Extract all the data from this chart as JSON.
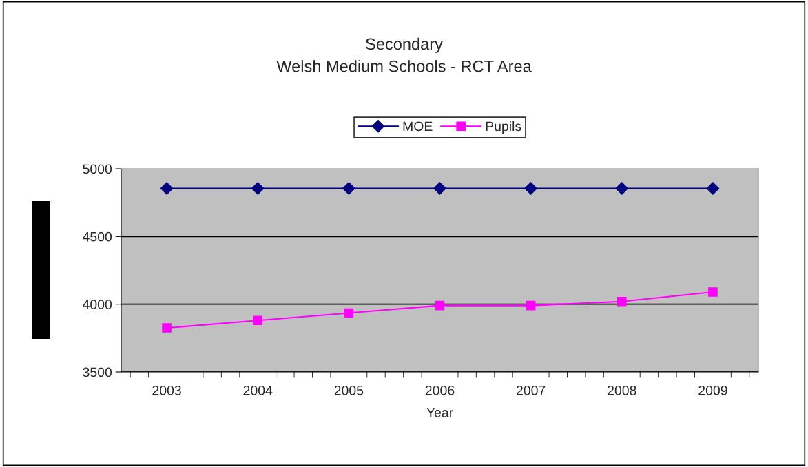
{
  "chart_data": {
    "type": "line",
    "title": "Secondary\nWelsh Medium Schools - RCT Area",
    "xlabel": "Year",
    "categories": [
      "2003",
      "2004",
      "2005",
      "2006",
      "2007",
      "2008",
      "2009"
    ],
    "series": [
      {
        "name": "MOE",
        "color": "#000080",
        "marker": "diamond",
        "values": [
          4855,
          4855,
          4855,
          4855,
          4855,
          4855,
          4855
        ]
      },
      {
        "name": "Pupils",
        "color": "#ff00ff",
        "marker": "square",
        "values": [
          3825,
          3880,
          3935,
          3990,
          3990,
          4020,
          4090
        ]
      }
    ],
    "ylim": [
      3500,
      5000
    ],
    "yticks": [
      3500,
      4000,
      4500,
      5000
    ],
    "grid": "y",
    "legend": "top"
  }
}
